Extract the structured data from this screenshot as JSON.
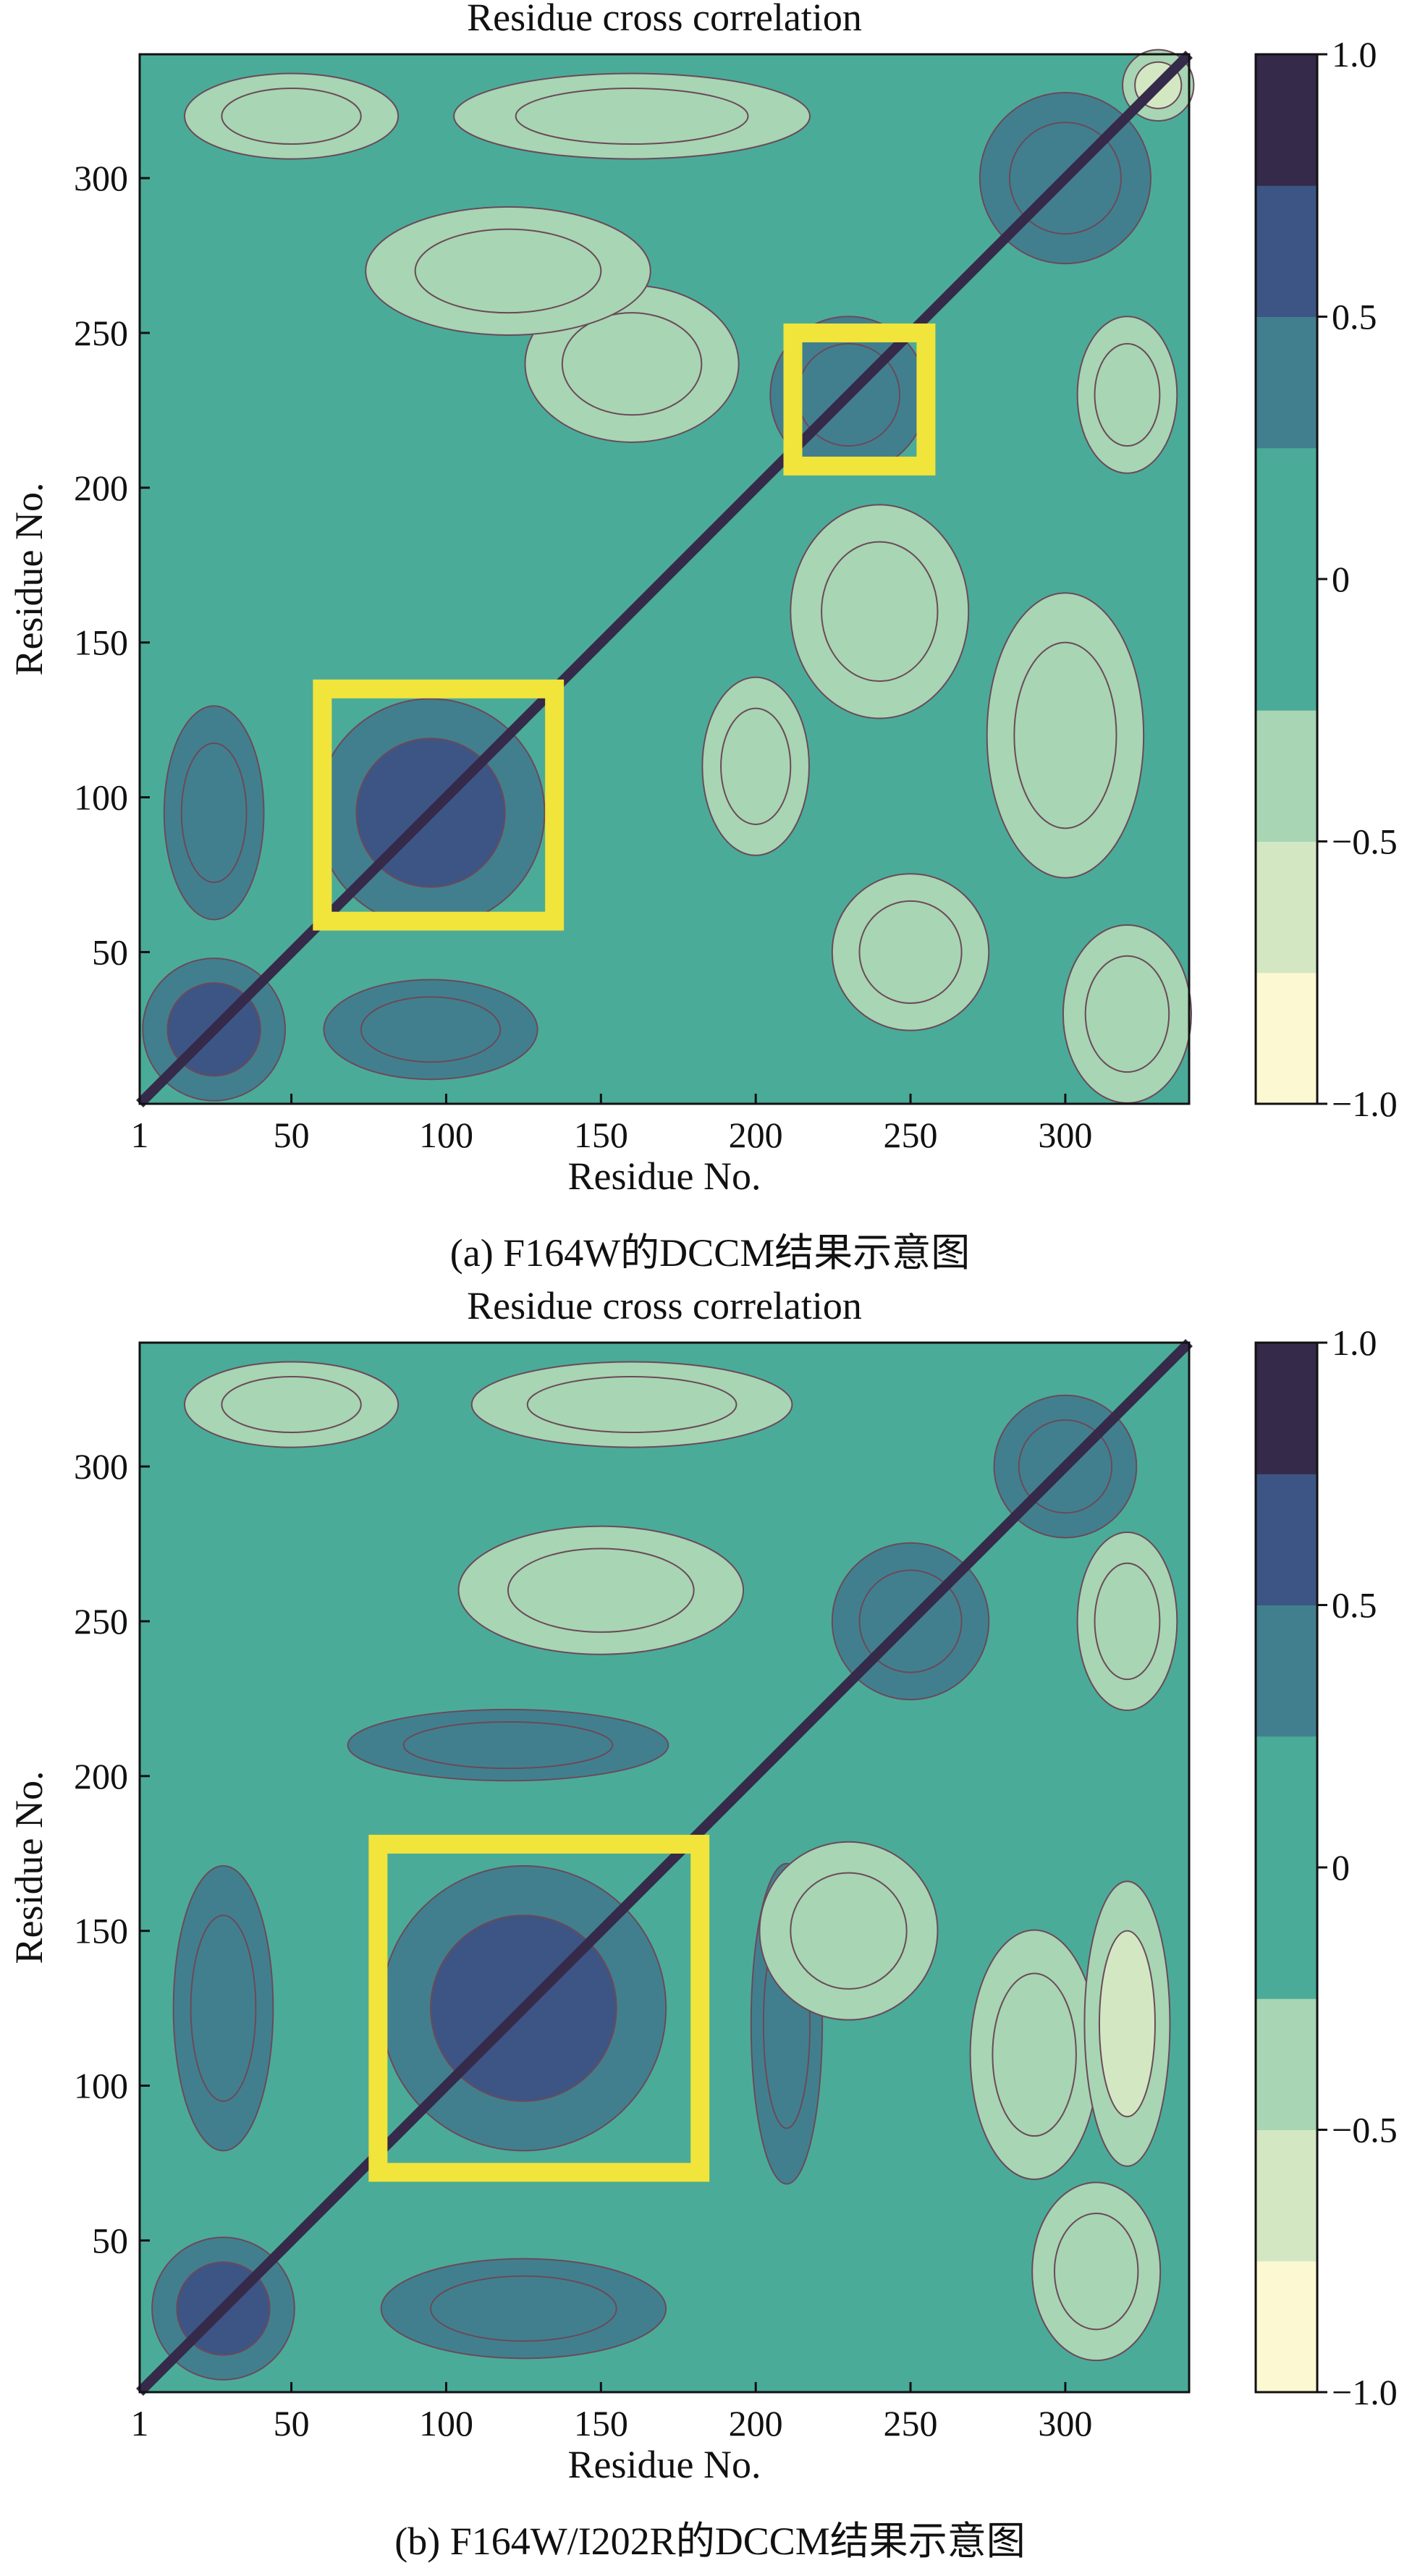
{
  "colors": {
    "levels": [
      "#fcf8d2",
      "#d4e7c3",
      "#a8d5b3",
      "#4bab99",
      "#4bab99",
      "#427f8e",
      "#3d5584",
      "#352a4a"
    ],
    "background": "#4bab99",
    "contour_line": "#6a4a5a",
    "highlight_box": "#f1e43a"
  },
  "chart_data": [
    {
      "type": "heatmap",
      "title": "Residue cross correlation",
      "xlabel": "Residue No.",
      "ylabel": "Residue No.",
      "caption": "(a) F164W的DCCM结果示意图",
      "xlim": [
        1,
        340
      ],
      "ylim": [
        1,
        340
      ],
      "xticks": [
        "1",
        "50",
        "100",
        "150",
        "200",
        "250",
        "300"
      ],
      "xtick_values": [
        1,
        50,
        100,
        150,
        200,
        250,
        300
      ],
      "yticks": [
        "50",
        "100",
        "150",
        "200",
        "250",
        "300"
      ],
      "ytick_values": [
        50,
        100,
        150,
        200,
        250,
        300
      ],
      "colorbar": {
        "vmin": -1.0,
        "vmax": 1.0,
        "tick_labels": [
          "1.0",
          "0.5",
          "0",
          "−0.5",
          "−1.0"
        ],
        "tick_values": [
          1.0,
          0.5,
          0,
          -0.5,
          -1.0
        ],
        "levels": [
          -1.0,
          -0.75,
          -0.5,
          -0.25,
          0,
          0.25,
          0.5,
          0.75,
          1.0
        ]
      },
      "diagonal": 1.0,
      "highlight_boxes": [
        {
          "x": [
            60,
            135
          ],
          "y": [
            60,
            135
          ]
        },
        {
          "x": [
            212,
            255
          ],
          "y": [
            207,
            250
          ]
        }
      ],
      "regions": [
        {
          "cx": 95,
          "cy": 95,
          "sx": 32,
          "sy": 32,
          "v": 0.55
        },
        {
          "cx": 25,
          "cy": 25,
          "sx": 20,
          "sy": 20,
          "v": 0.55
        },
        {
          "cx": 230,
          "cy": 230,
          "sx": 22,
          "sy": 22,
          "v": 0.45
        },
        {
          "cx": 95,
          "cy": 25,
          "sx": 30,
          "sy": 14,
          "v": 0.4
        },
        {
          "cx": 25,
          "cy": 95,
          "sx": 14,
          "sy": 30,
          "v": 0.4
        },
        {
          "cx": 300,
          "cy": 300,
          "sx": 24,
          "sy": 24,
          "v": 0.3
        },
        {
          "cx": 240,
          "cy": 160,
          "sx": 25,
          "sy": 30,
          "v": -0.45
        },
        {
          "cx": 160,
          "cy": 240,
          "sx": 30,
          "sy": 22,
          "v": -0.45
        },
        {
          "cx": 300,
          "cy": 120,
          "sx": 22,
          "sy": 40,
          "v": -0.4
        },
        {
          "cx": 200,
          "cy": 110,
          "sx": 15,
          "sy": 25,
          "v": -0.35
        },
        {
          "cx": 160,
          "cy": 320,
          "sx": 50,
          "sy": 12,
          "v": -0.35
        },
        {
          "cx": 50,
          "cy": 320,
          "sx": 30,
          "sy": 12,
          "v": -0.45
        },
        {
          "cx": 320,
          "cy": 30,
          "sx": 18,
          "sy": 25,
          "v": -0.45
        },
        {
          "cx": 250,
          "cy": 50,
          "sx": 22,
          "sy": 22,
          "v": -0.3
        },
        {
          "cx": 120,
          "cy": 270,
          "sx": 40,
          "sy": 18,
          "v": -0.35
        },
        {
          "cx": 320,
          "cy": 230,
          "sx": 14,
          "sy": 22,
          "v": -0.4
        },
        {
          "cx": 330,
          "cy": 330,
          "sx": 10,
          "sy": 10,
          "v": -0.6
        }
      ]
    },
    {
      "type": "heatmap",
      "title": "Residue cross correlation",
      "xlabel": "Residue No.",
      "ylabel": "Residue No.",
      "caption": "(b) F164W/I202R的DCCM结果示意图",
      "xlim": [
        1,
        340
      ],
      "ylim": [
        1,
        340
      ],
      "xticks": [
        "1",
        "50",
        "100",
        "150",
        "200",
        "250",
        "300"
      ],
      "xtick_values": [
        1,
        50,
        100,
        150,
        200,
        250,
        300
      ],
      "yticks": [
        "50",
        "100",
        "150",
        "200",
        "250",
        "300"
      ],
      "ytick_values": [
        50,
        100,
        150,
        200,
        250,
        300
      ],
      "colorbar": {
        "vmin": -1.0,
        "vmax": 1.0,
        "tick_labels": [
          "1.0",
          "0.5",
          "0",
          "−0.5",
          "−1.0"
        ],
        "tick_values": [
          1.0,
          0.5,
          0,
          -0.5,
          -1.0
        ],
        "levels": [
          -1.0,
          -0.75,
          -0.5,
          -0.25,
          0,
          0.25,
          0.5,
          0.75,
          1.0
        ]
      },
      "diagonal": 1.0,
      "highlight_boxes": [
        {
          "x": [
            78,
            182
          ],
          "y": [
            72,
            178
          ]
        }
      ],
      "regions": [
        {
          "cx": 125,
          "cy": 125,
          "sx": 40,
          "sy": 40,
          "v": 0.55
        },
        {
          "cx": 28,
          "cy": 28,
          "sx": 20,
          "sy": 20,
          "v": 0.55
        },
        {
          "cx": 250,
          "cy": 250,
          "sx": 22,
          "sy": 22,
          "v": 0.4
        },
        {
          "cx": 300,
          "cy": 300,
          "sx": 20,
          "sy": 20,
          "v": 0.3
        },
        {
          "cx": 125,
          "cy": 28,
          "sx": 40,
          "sy": 14,
          "v": 0.35
        },
        {
          "cx": 28,
          "cy": 125,
          "sx": 14,
          "sy": 40,
          "v": 0.35
        },
        {
          "cx": 210,
          "cy": 120,
          "sx": 10,
          "sy": 45,
          "v": 0.3
        },
        {
          "cx": 120,
          "cy": 210,
          "sx": 45,
          "sy": 10,
          "v": 0.3
        },
        {
          "cx": 290,
          "cy": 110,
          "sx": 18,
          "sy": 35,
          "v": -0.4
        },
        {
          "cx": 320,
          "cy": 120,
          "sx": 12,
          "sy": 40,
          "v": -0.55
        },
        {
          "cx": 160,
          "cy": 320,
          "sx": 45,
          "sy": 12,
          "v": -0.45
        },
        {
          "cx": 50,
          "cy": 320,
          "sx": 30,
          "sy": 12,
          "v": -0.45
        },
        {
          "cx": 230,
          "cy": 150,
          "sx": 25,
          "sy": 25,
          "v": -0.35
        },
        {
          "cx": 150,
          "cy": 260,
          "sx": 40,
          "sy": 18,
          "v": -0.35
        },
        {
          "cx": 310,
          "cy": 40,
          "sx": 18,
          "sy": 25,
          "v": -0.35
        },
        {
          "cx": 320,
          "cy": 250,
          "sx": 14,
          "sy": 25,
          "v": -0.4
        }
      ]
    }
  ]
}
